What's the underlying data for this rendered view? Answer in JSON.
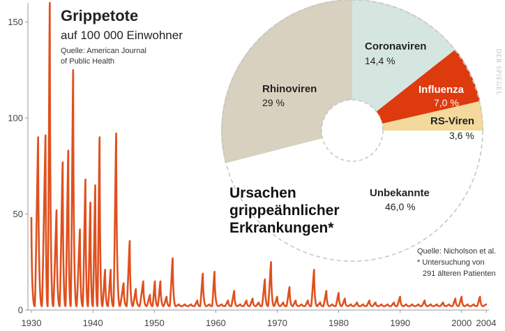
{
  "chart_data": [
    {
      "type": "line",
      "title": "Grippetote",
      "subtitle": "auf 100 000 Einwohner",
      "source_lines": [
        "Quelle: American Journal",
        "of Public Health"
      ],
      "xlim": [
        1930,
        2004
      ],
      "ylim": [
        0,
        160
      ],
      "x_ticks": [
        1930,
        1940,
        1950,
        1960,
        1970,
        1980,
        1990,
        2000,
        2004
      ],
      "y_ticks": [
        0,
        50,
        100,
        150
      ],
      "line_color": "#e0501e",
      "baseline_value": 2,
      "series": [
        {
          "peaks": [
            {
              "x": 1930.0,
              "y": 48
            },
            {
              "x": 1931.1,
              "y": 90
            },
            {
              "x": 1932.3,
              "y": 91
            },
            {
              "x": 1933.0,
              "y": 160
            },
            {
              "x": 1934.1,
              "y": 52
            },
            {
              "x": 1935.1,
              "y": 77
            },
            {
              "x": 1936.0,
              "y": 83
            },
            {
              "x": 1936.8,
              "y": 125
            },
            {
              "x": 1937.9,
              "y": 42
            },
            {
              "x": 1938.8,
              "y": 68
            },
            {
              "x": 1939.6,
              "y": 56
            },
            {
              "x": 1940.4,
              "y": 65
            },
            {
              "x": 1941.1,
              "y": 90
            },
            {
              "x": 1942.0,
              "y": 21
            },
            {
              "x": 1942.9,
              "y": 21
            },
            {
              "x": 1943.8,
              "y": 92
            },
            {
              "x": 1945.0,
              "y": 14
            },
            {
              "x": 1946.0,
              "y": 36
            },
            {
              "x": 1947.0,
              "y": 11
            },
            {
              "x": 1948.2,
              "y": 15
            },
            {
              "x": 1949.3,
              "y": 8
            },
            {
              "x": 1950.1,
              "y": 15
            },
            {
              "x": 1951.0,
              "y": 15
            },
            {
              "x": 1952.0,
              "y": 7
            },
            {
              "x": 1953.0,
              "y": 27
            },
            {
              "x": 1954.0,
              "y": 3
            },
            {
              "x": 1955.0,
              "y": 3
            },
            {
              "x": 1956.0,
              "y": 3
            },
            {
              "x": 1957.0,
              "y": 5
            },
            {
              "x": 1957.9,
              "y": 19
            },
            {
              "x": 1959.0,
              "y": 3
            },
            {
              "x": 1959.8,
              "y": 20
            },
            {
              "x": 1961.0,
              "y": 3
            },
            {
              "x": 1962.0,
              "y": 5
            },
            {
              "x": 1963.0,
              "y": 10
            },
            {
              "x": 1964.0,
              "y": 3
            },
            {
              "x": 1965.0,
              "y": 5
            },
            {
              "x": 1966.0,
              "y": 6
            },
            {
              "x": 1967.0,
              "y": 4
            },
            {
              "x": 1968.0,
              "y": 16
            },
            {
              "x": 1969.0,
              "y": 25
            },
            {
              "x": 1970.0,
              "y": 7
            },
            {
              "x": 1971.0,
              "y": 4
            },
            {
              "x": 1972.0,
              "y": 12
            },
            {
              "x": 1973.0,
              "y": 5
            },
            {
              "x": 1974.0,
              "y": 3
            },
            {
              "x": 1975.0,
              "y": 5
            },
            {
              "x": 1976.0,
              "y": 21
            },
            {
              "x": 1977.0,
              "y": 4
            },
            {
              "x": 1978.0,
              "y": 10
            },
            {
              "x": 1979.0,
              "y": 3
            },
            {
              "x": 1980.0,
              "y": 9
            },
            {
              "x": 1981.0,
              "y": 6
            },
            {
              "x": 1982.0,
              "y": 3
            },
            {
              "x": 1983.0,
              "y": 4
            },
            {
              "x": 1984.0,
              "y": 3
            },
            {
              "x": 1985.0,
              "y": 5
            },
            {
              "x": 1986.0,
              "y": 4
            },
            {
              "x": 1987.0,
              "y": 3
            },
            {
              "x": 1988.0,
              "y": 3
            },
            {
              "x": 1989.0,
              "y": 4
            },
            {
              "x": 1990.0,
              "y": 7
            },
            {
              "x": 1991.0,
              "y": 3
            },
            {
              "x": 1992.0,
              "y": 3
            },
            {
              "x": 1993.0,
              "y": 3
            },
            {
              "x": 1994.0,
              "y": 5
            },
            {
              "x": 1995.0,
              "y": 3
            },
            {
              "x": 1996.0,
              "y": 3
            },
            {
              "x": 1997.0,
              "y": 4
            },
            {
              "x": 1998.0,
              "y": 3
            },
            {
              "x": 1999.0,
              "y": 6
            },
            {
              "x": 2000.0,
              "y": 7
            },
            {
              "x": 2001.0,
              "y": 3
            },
            {
              "x": 2002.0,
              "y": 3
            },
            {
              "x": 2003.0,
              "y": 7
            },
            {
              "x": 2004.0,
              "y": 3
            }
          ]
        }
      ]
    },
    {
      "type": "pie",
      "style": "donut",
      "title_lines": [
        "Ursachen",
        "grippeähnlicher",
        "Erkrankungen*"
      ],
      "segments": [
        {
          "label": "Coronaviren",
          "value": 14.4,
          "value_label": "14,4 %",
          "color": "#d5e6e0",
          "text_color": "#222222"
        },
        {
          "label": "Influenza",
          "value": 7.0,
          "value_label": "7,0 %",
          "color": "#dd3a0e",
          "text_color": "#ffffff"
        },
        {
          "label": "RS-Viren",
          "value": 3.6,
          "value_label": "3,6 %",
          "color": "#f3d99c",
          "text_color": "#222222"
        },
        {
          "label": "Unbekannte",
          "value": 46.0,
          "value_label": "46,0 %",
          "color": "#ffffff",
          "text_color": "#222222"
        },
        {
          "label": "Rhinoviren",
          "value": 29,
          "value_label": "29 %",
          "color": "#d8d1bf",
          "text_color": "#222222"
        }
      ],
      "source_lines": [
        "Quelle: Nicholson et al.",
        "* Untersuchung von",
        "291 älteren Patienten"
      ]
    }
  ],
  "watermark": "DER SPIEGEL"
}
